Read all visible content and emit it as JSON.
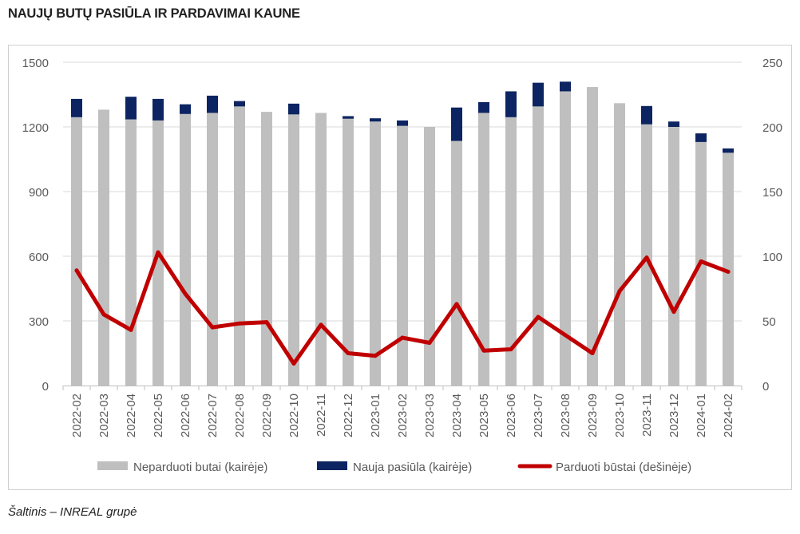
{
  "title": "NAUJŲ BUTŲ PASIŪLA IR PARDAVIMAI KAUNE",
  "source": "Šaltinis – INREAL grupė",
  "colors": {
    "unsold": "#bfbfbf",
    "new_supply": "#0c2461",
    "sold": "#c00000",
    "grid": "#d9d9d9",
    "text": "#595959"
  },
  "chart_data": {
    "type": "bar",
    "stacked": true,
    "categories": [
      "2022-02",
      "2022-03",
      "2022-04",
      "2022-05",
      "2022-06",
      "2022-07",
      "2022-08",
      "2022-09",
      "2022-10",
      "2022-11",
      "2022-12",
      "2023-01",
      "2023-02",
      "2023-03",
      "2023-04",
      "2023-05",
      "2023-06",
      "2023-07",
      "2023-08",
      "2023-09",
      "2023-10",
      "2023-11",
      "2023-12",
      "2024-01",
      "2024-02"
    ],
    "series": [
      {
        "name": "Neparduoti butai (kairėje)",
        "type": "bar",
        "axis": "left",
        "color": "#bfbfbf",
        "values": [
          1245,
          1280,
          1235,
          1230,
          1260,
          1265,
          1295,
          1270,
          1258,
          1265,
          1238,
          1225,
          1205,
          1200,
          1135,
          1265,
          1245,
          1295,
          1365,
          1385,
          1310,
          1212,
          1200,
          1130,
          1080
        ]
      },
      {
        "name": "Nauja pasiūla (kairėje)",
        "type": "bar",
        "axis": "left",
        "color": "#0c2461",
        "values": [
          85,
          0,
          105,
          100,
          45,
          80,
          25,
          0,
          50,
          0,
          12,
          15,
          25,
          0,
          155,
          50,
          120,
          110,
          45,
          0,
          0,
          85,
          25,
          40,
          20
        ]
      },
      {
        "name": "Parduoti būstai (dešinėje)",
        "type": "line",
        "axis": "right",
        "color": "#c00000",
        "values": [
          89,
          55,
          43,
          103,
          71,
          45,
          48,
          49,
          17,
          47,
          25,
          23,
          37,
          33,
          63,
          27,
          28,
          53,
          39,
          25,
          73,
          99,
          57,
          96,
          88
        ]
      }
    ],
    "y_left": {
      "min": 0,
      "max": 1500,
      "ticks": [
        0,
        300,
        600,
        900,
        1200,
        1500
      ]
    },
    "y_right": {
      "min": 0,
      "max": 250,
      "ticks": [
        0,
        50,
        100,
        150,
        200,
        250
      ]
    },
    "grid": true,
    "legend_position": "bottom"
  }
}
